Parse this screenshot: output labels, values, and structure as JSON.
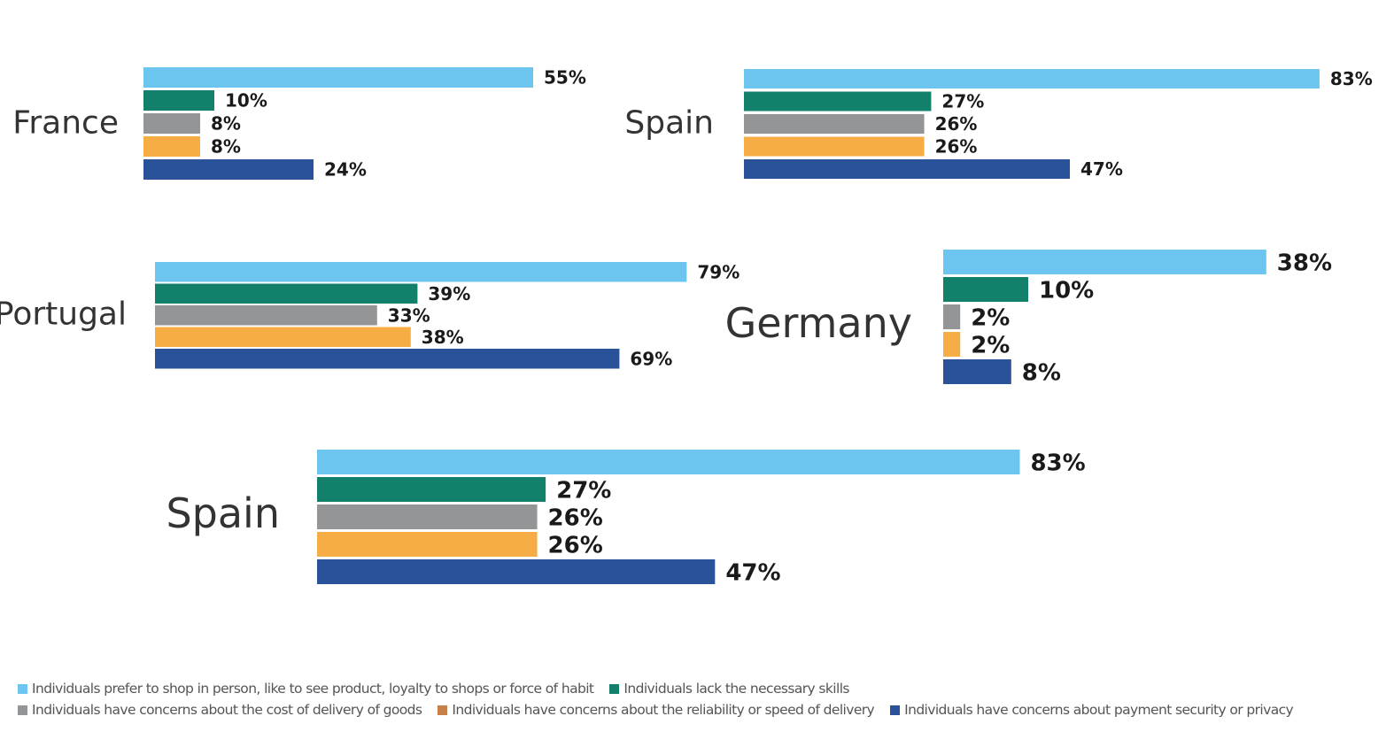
{
  "chart_data": {
    "type": "bar",
    "orientation": "horizontal",
    "unit": "%",
    "series": [
      {
        "name": "Individuals prefer to shop in person, like to see product, loyalty to shops or force of habit",
        "color": "#6cc5ef"
      },
      {
        "name": "Individuals lack the necessary skills",
        "color": "#12806b"
      },
      {
        "name": "Individuals have concerns about the cost of delivery of goods",
        "color": "#939597"
      },
      {
        "name": "Individuals have concerns about the reliability or speed of delivery",
        "color": "#f7ad45"
      },
      {
        "name": "Individuals have concerns about payment security or privacy",
        "color": "#2a5298"
      }
    ],
    "panels": [
      {
        "country": "France",
        "values": [
          55,
          10,
          8,
          8,
          24
        ],
        "labels": [
          "55%",
          "10%",
          "8%",
          "8%",
          "24%"
        ]
      },
      {
        "country": "Spain",
        "values": [
          83,
          27,
          26,
          26,
          47
        ],
        "labels": [
          "83%",
          "27%",
          "26%",
          "26%",
          "47%"
        ]
      },
      {
        "country": "Portugal",
        "values": [
          79,
          39,
          33,
          38,
          69
        ],
        "labels": [
          "79%",
          "39%",
          "33%",
          "38%",
          "69%"
        ]
      },
      {
        "country": "Germany",
        "values": [
          38,
          10,
          2,
          2,
          8
        ],
        "labels": [
          "38%",
          "10%",
          "2%",
          "2%",
          "8%"
        ]
      },
      {
        "country": "Spain",
        "values": [
          83,
          27,
          26,
          26,
          47
        ],
        "labels": [
          "83%",
          "27%",
          "26%",
          "26%",
          "47%"
        ]
      }
    ],
    "legend": [
      {
        "label": "Individuals prefer to shop in person, like to see product, loyalty to shops or force of habit",
        "color": "#6cc5ef"
      },
      {
        "label": "Individuals lack the necessary skills",
        "color": "#12806b"
      },
      {
        "label": "Individuals have concerns about the cost of delivery of goods",
        "color": "#939597"
      },
      {
        "label": "Individuals have concerns about the reliability or speed of delivery",
        "color": "#c8804a"
      },
      {
        "label": "Individuals have concerns about payment security or privacy",
        "color": "#2a5298"
      }
    ]
  }
}
